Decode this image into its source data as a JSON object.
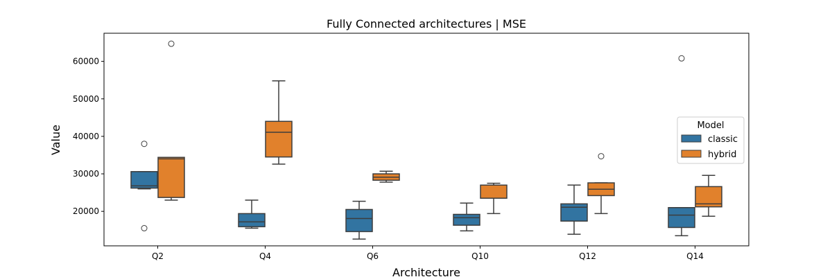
{
  "chart_data": {
    "type": "box",
    "title": "Fully Connected architectures | MSE",
    "xlabel": "Architecture",
    "ylabel": "Value",
    "ylim": [
      10800,
      67500
    ],
    "yticks": [
      20000,
      30000,
      40000,
      50000,
      60000
    ],
    "ytick_labels": [
      "20000",
      "30000",
      "40000",
      "50000",
      "60000"
    ],
    "categories": [
      "Q2",
      "Q4",
      "Q6",
      "Q10",
      "Q12",
      "Q14"
    ],
    "legend": {
      "title": "Model",
      "position": "center-right"
    },
    "series": [
      {
        "name": "classic",
        "color": "#3274a1",
        "boxes": [
          {
            "whislo": 26000,
            "q1": 26200,
            "med": 26800,
            "q3": 30600,
            "whishi": 30600,
            "fliers": [
              38000,
              15500
            ]
          },
          {
            "whislo": 15500,
            "q1": 15900,
            "med": 17200,
            "q3": 19400,
            "whishi": 23000,
            "fliers": []
          },
          {
            "whislo": 12600,
            "q1": 14600,
            "med": 18100,
            "q3": 20500,
            "whishi": 22700,
            "fliers": []
          },
          {
            "whislo": 14800,
            "q1": 16300,
            "med": 18300,
            "q3": 19200,
            "whishi": 22200,
            "fliers": []
          },
          {
            "whislo": 13900,
            "q1": 17400,
            "med": 21100,
            "q3": 22000,
            "whishi": 27000,
            "fliers": []
          },
          {
            "whislo": 13500,
            "q1": 15700,
            "med": 19000,
            "q3": 21000,
            "whishi": 21000,
            "fliers": [
              60800
            ]
          }
        ]
      },
      {
        "name": "hybrid",
        "color": "#e1812c",
        "boxes": [
          {
            "whislo": 23000,
            "q1": 23700,
            "med": 34000,
            "q3": 34400,
            "whishi": 34400,
            "fliers": [
              64700
            ]
          },
          {
            "whislo": 32600,
            "q1": 34500,
            "med": 41100,
            "q3": 44000,
            "whishi": 54800,
            "fliers": []
          },
          {
            "whislo": 27800,
            "q1": 28300,
            "med": 29100,
            "q3": 30000,
            "whishi": 30700,
            "fliers": []
          },
          {
            "whislo": 19400,
            "q1": 23500,
            "med": 23500,
            "q3": 27000,
            "whishi": 27500,
            "fliers": []
          },
          {
            "whislo": 19400,
            "q1": 24200,
            "med": 25900,
            "q3": 27600,
            "whishi": 27600,
            "fliers": [
              34700
            ]
          },
          {
            "whislo": 18700,
            "q1": 21200,
            "med": 22000,
            "q3": 26600,
            "whishi": 29600,
            "fliers": []
          }
        ]
      }
    ]
  }
}
